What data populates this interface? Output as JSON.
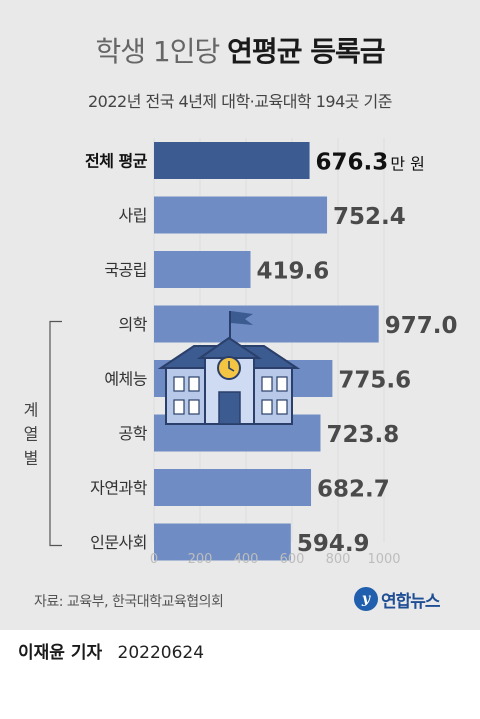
{
  "header": {
    "title_light": "학생 1인당",
    "title_bold": "연평균 등록금",
    "subtitle": "2022년 전국 4년제 대학·교육대학 194곳 기준"
  },
  "chart_data": {
    "type": "bar",
    "orientation": "horizontal",
    "categories": [
      "전체 평균",
      "사립",
      "국공립",
      "의학",
      "예체능",
      "공학",
      "자연과학",
      "인문사회"
    ],
    "values": [
      676.3,
      752.4,
      419.6,
      977.0,
      775.6,
      723.8,
      682.7,
      594.9
    ],
    "value_labels": [
      "676.3",
      "752.4",
      "419.6",
      "977.0",
      "775.6",
      "723.8",
      "682.7",
      "594.9"
    ],
    "unit": "만 원",
    "highlight_index": 0,
    "xlim": [
      0,
      1000
    ],
    "xticks": [
      0,
      200,
      400,
      600,
      800,
      1000
    ],
    "group_label": "계열별",
    "group_range": [
      3,
      7
    ],
    "colors": {
      "highlight": "#3b5b91",
      "bar": "#6f8dc4",
      "axis_text": "#bdbdbd"
    },
    "decoration": "school-building-icon"
  },
  "footer": {
    "source": "자료: 교육부, 한국대학교육협의회",
    "logo_text": "연합뉴스",
    "author": "이재윤 기자",
    "date": "20220624"
  }
}
